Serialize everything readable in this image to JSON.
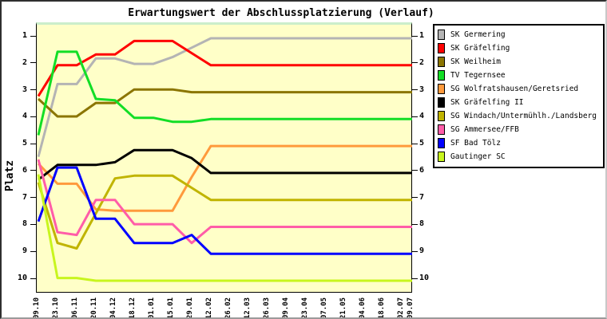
{
  "title": "Erwartungswert der Abschlussplatzierung (Verlauf)",
  "chart_data": {
    "type": "line",
    "title": "Erwartungswert der Abschlussplatzierung (Verlauf)",
    "xlabel": "",
    "ylabel": "Platz",
    "ylim": [
      1,
      10
    ],
    "y_inverted": true,
    "grid": false,
    "legend_position": "right",
    "plot_background": "#FFFFC8",
    "y_ticks": [
      "1",
      "2",
      "3",
      "4",
      "5",
      "6",
      "7",
      "8",
      "9",
      "10"
    ],
    "x_labels": [
      "09.10",
      "23.10",
      "06.11",
      "20.11",
      "04.12",
      "18.12",
      "01.01",
      "15.01",
      "29.01",
      "12.02",
      "26.02",
      "12.03",
      "26.03",
      "09.04",
      "23.04",
      "07.05",
      "21.05",
      "04.06",
      "18.06",
      "02.07",
      "09.07"
    ],
    "x_days": [
      0,
      14,
      28,
      42,
      56,
      70,
      84,
      98,
      112,
      126,
      140,
      154,
      168,
      182,
      196,
      210,
      224,
      238,
      252,
      266,
      273
    ],
    "series": [
      {
        "name": "SK Germering",
        "color": "#B4B4B4",
        "values": [
          5.4,
          2.7,
          2.7,
          1.75,
          1.75,
          1.95,
          1.95,
          1.7,
          1.35,
          1,
          1,
          1,
          1,
          1,
          1,
          1,
          1,
          1,
          1,
          1,
          1
        ]
      },
      {
        "name": "SK Gräfelfing",
        "color": "#FF0000",
        "values": [
          3.15,
          2.0,
          2.0,
          1.6,
          1.6,
          1.1,
          1.1,
          1.1,
          1.55,
          2,
          2,
          2,
          2,
          2,
          2,
          2,
          2,
          2,
          2,
          2,
          2
        ]
      },
      {
        "name": "SK Weilheim",
        "color": "#8B7500",
        "values": [
          3.25,
          3.9,
          3.9,
          3.4,
          3.4,
          2.9,
          2.9,
          2.9,
          3.0,
          3,
          3,
          3,
          3,
          3,
          3,
          3,
          3,
          3,
          3,
          3,
          3
        ]
      },
      {
        "name": "TV Tegernsee",
        "color": "#12DE26",
        "values": [
          4.6,
          1.5,
          1.5,
          3.25,
          3.3,
          3.95,
          3.95,
          4.1,
          4.1,
          4,
          4,
          4,
          4,
          4,
          4,
          4,
          4,
          4,
          4,
          4,
          4
        ]
      },
      {
        "name": "SG Wolfratshausen/Geretsried",
        "color": "#FF9A3C",
        "values": [
          5.65,
          6.4,
          6.4,
          7.35,
          7.4,
          7.4,
          7.4,
          7.4,
          6.15,
          5,
          5,
          5,
          5,
          5,
          5,
          5,
          5,
          5,
          5,
          5,
          5
        ]
      },
      {
        "name": "SK Gräfelfing II",
        "color": "#000000",
        "values": [
          6.25,
          5.7,
          5.7,
          5.7,
          5.6,
          5.15,
          5.15,
          5.15,
          5.45,
          6,
          6,
          6,
          6,
          6,
          6,
          6,
          6,
          6,
          6,
          6,
          6
        ]
      },
      {
        "name": "SG Windach/Untermühlh./Landsberg",
        "color": "#C0B400",
        "values": [
          6.35,
          8.6,
          8.8,
          7.5,
          6.2,
          6.1,
          6.1,
          6.1,
          6.55,
          7,
          7,
          7,
          7,
          7,
          7,
          7,
          7,
          7,
          7,
          7,
          7
        ]
      },
      {
        "name": "SG Ammersee/FFB",
        "color": "#FF5CA8",
        "values": [
          5.5,
          8.2,
          8.3,
          7.0,
          7.0,
          7.9,
          7.9,
          7.9,
          8.6,
          8,
          8,
          8,
          8,
          8,
          8,
          8,
          8,
          8,
          8,
          8,
          8
        ]
      },
      {
        "name": "SF Bad Tölz",
        "color": "#0000FF",
        "values": [
          7.8,
          5.8,
          5.8,
          7.7,
          7.7,
          8.6,
          8.6,
          8.6,
          8.3,
          9,
          9,
          9,
          9,
          9,
          9,
          9,
          9,
          9,
          9,
          9,
          9
        ]
      },
      {
        "name": "Gautinger SC",
        "color": "#C8F51E",
        "values": [
          6.05,
          9.9,
          9.9,
          10,
          10,
          10,
          10,
          10,
          10,
          10,
          10,
          10,
          10,
          10,
          10,
          10,
          10,
          10,
          10,
          10,
          10
        ]
      }
    ]
  },
  "legend": {
    "items": [
      {
        "label": "SK Germering",
        "color": "#B4B4B4"
      },
      {
        "label": "SK Gräfelfing",
        "color": "#FF0000"
      },
      {
        "label": "SK Weilheim",
        "color": "#8B7500"
      },
      {
        "label": "TV Tegernsee",
        "color": "#12DE26"
      },
      {
        "label": "SG Wolfratshausen/Geretsried",
        "color": "#FF9A3C"
      },
      {
        "label": "SK Gräfelfing II",
        "color": "#000000"
      },
      {
        "label": "SG Windach/Untermühlh./Landsberg",
        "color": "#C0B400"
      },
      {
        "label": "SG Ammersee/FFB",
        "color": "#FF5CA8"
      },
      {
        "label": "SF Bad Tölz",
        "color": "#0000FF"
      },
      {
        "label": "Gautinger SC",
        "color": "#C8F51E"
      }
    ]
  }
}
